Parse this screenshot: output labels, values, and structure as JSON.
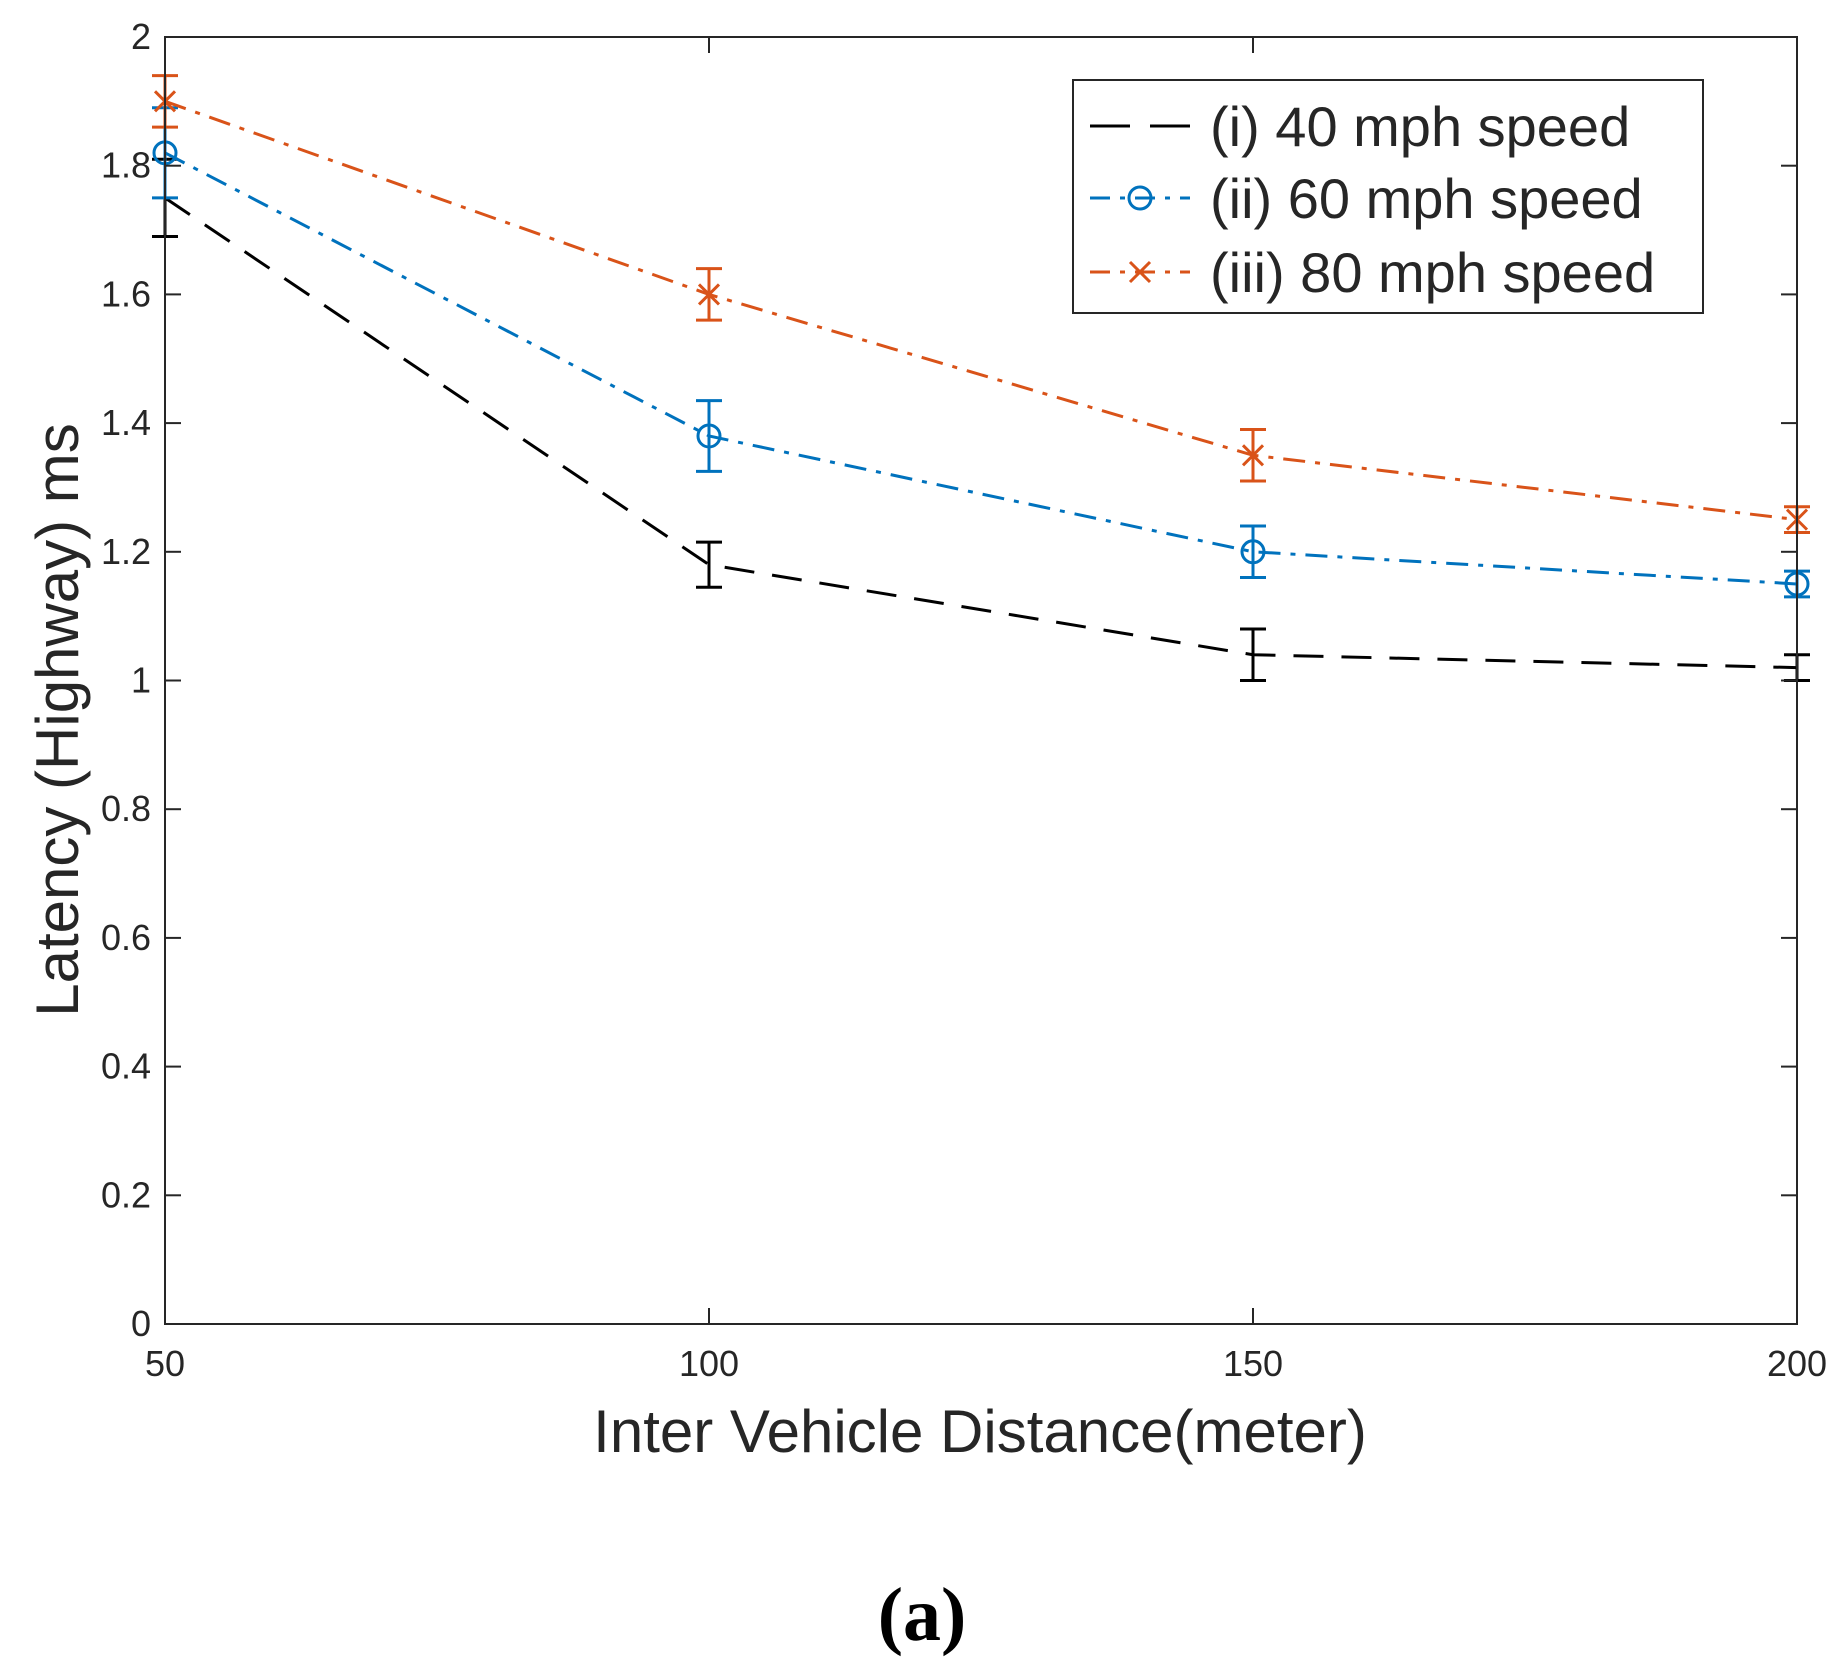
{
  "chart_data": {
    "type": "line",
    "caption": "(a)",
    "xlabel": "Inter Vehicle Distance(meter)",
    "ylabel": "Latency (Highway) ms",
    "x": [
      50,
      100,
      150,
      200
    ],
    "xlim": [
      50,
      200
    ],
    "ylim": [
      0,
      2
    ],
    "xticks": [
      "50",
      "100",
      "150",
      "200"
    ],
    "yticks": [
      "0",
      "0.2",
      "0.4",
      "0.6",
      "0.8",
      "1",
      "1.2",
      "1.4",
      "1.6",
      "1.8",
      "2"
    ],
    "grid": false,
    "legend_position": "top-right",
    "series": [
      {
        "name": "(i) 40 mph speed",
        "color": "#000000",
        "line_style": "dashed",
        "marker": "none",
        "values": [
          1.75,
          1.18,
          1.04,
          1.02
        ],
        "errors": [
          0.06,
          0.035,
          0.04,
          0.02
        ]
      },
      {
        "name": "(ii) 60 mph speed",
        "color": "#0072BD",
        "line_style": "dash-dot",
        "marker": "circle",
        "values": [
          1.82,
          1.38,
          1.2,
          1.15
        ],
        "errors": [
          0.07,
          0.055,
          0.04,
          0.02
        ]
      },
      {
        "name": "(iii) 80 mph speed",
        "color": "#D95319",
        "line_style": "dash-dot",
        "marker": "x",
        "values": [
          1.9,
          1.6,
          1.35,
          1.25
        ],
        "errors": [
          0.04,
          0.04,
          0.04,
          0.02
        ]
      }
    ]
  }
}
